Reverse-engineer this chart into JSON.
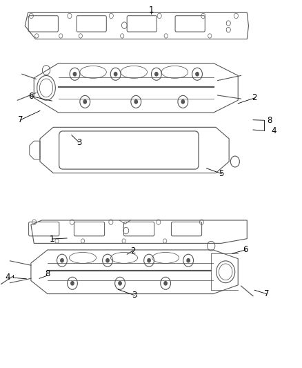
{
  "bg_color": "#ffffff",
  "line_color": "#555555",
  "fig_width": 4.38,
  "fig_height": 5.33,
  "dpi": 100
}
